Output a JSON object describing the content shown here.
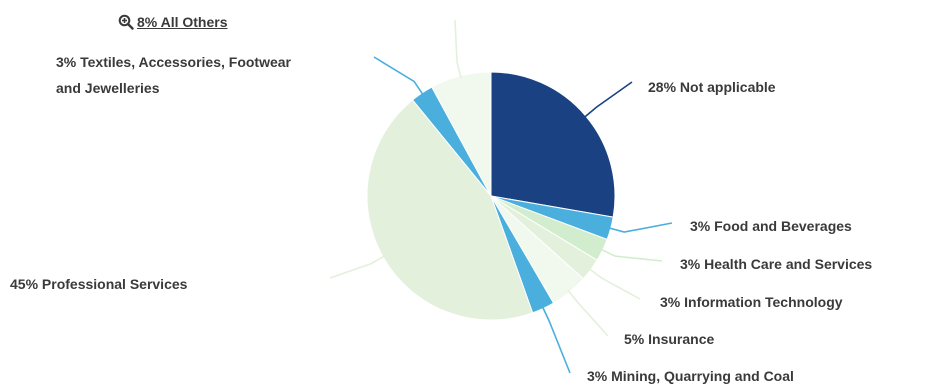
{
  "others_label": "8% All Others",
  "chart_data": {
    "type": "pie",
    "slices": [
      {
        "label": "Not applicable",
        "value": 28,
        "text": "28% Not applicable",
        "color": "#1a4282"
      },
      {
        "label": "Food and Beverages",
        "value": 3,
        "text": "3% Food and Beverages",
        "color": "#4aafdc"
      },
      {
        "label": "Health Care and Services",
        "value": 3,
        "text": "3% Health Care and Services",
        "color": "#d2edcd"
      },
      {
        "label": "Information Technology",
        "value": 3,
        "text": "3% Information Technology",
        "color": "#e3f1dc"
      },
      {
        "label": "Insurance",
        "value": 5,
        "text": "5% Insurance",
        "color": "#f1f8ee"
      },
      {
        "label": "Mining, Quarrying and Coal",
        "value": 3,
        "text": "3% Mining, Quarrying and Coal",
        "color": "#4aafdc"
      },
      {
        "label": "Professional Services",
        "value": 45,
        "text": "45% Professional Services",
        "color": "#e3f1dc"
      },
      {
        "label": "Textiles, Accessories, Footwear and Jewelleries",
        "value": 3,
        "text_line1": "3% Textiles, Accessories, Footwear",
        "text_line2": "and Jewelleries",
        "color": "#4aafdc"
      },
      {
        "label": "All Others",
        "value": 8,
        "text": "8% All Others",
        "color": "#f1f8ee"
      }
    ]
  }
}
